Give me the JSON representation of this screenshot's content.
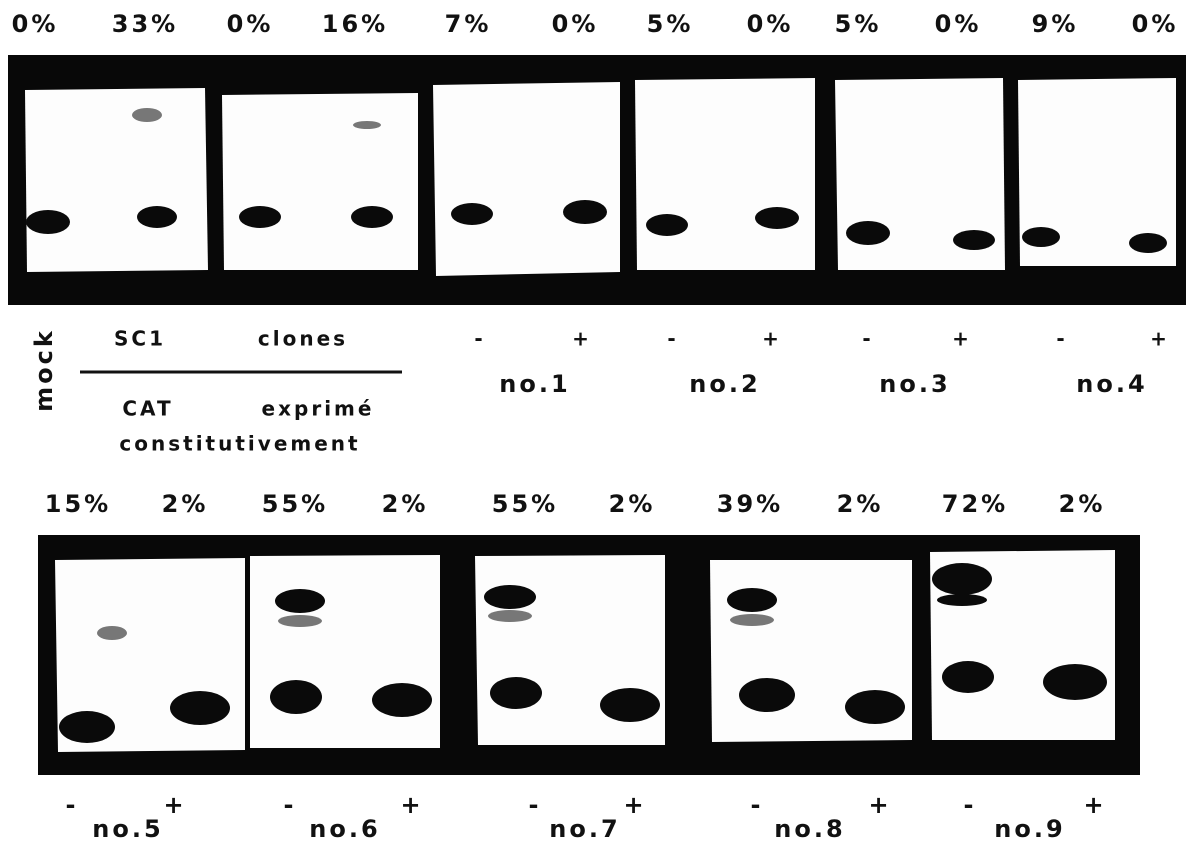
{
  "top": {
    "percents": [
      "0%",
      "33%",
      "0%",
      "16%",
      "7%",
      "0%",
      "5%",
      "0%",
      "5%",
      "0%",
      "9%",
      "0%"
    ],
    "mock": "mock",
    "sc1": "SC1",
    "clones": "clones",
    "cat": "CAT",
    "exprime": "exprimé",
    "constitutivement": "constitutivement",
    "clones_list": [
      {
        "minus": "-",
        "plus": "+",
        "name": "no.1"
      },
      {
        "minus": "-",
        "plus": "+",
        "name": "no.2"
      },
      {
        "minus": "-",
        "plus": "+",
        "name": "no.3"
      },
      {
        "minus": "-",
        "plus": "+",
        "name": "no.4"
      }
    ]
  },
  "bottom": {
    "percents": [
      "15%",
      "2%",
      "55%",
      "2%",
      "55%",
      "2%",
      "39%",
      "2%",
      "72%",
      "2%"
    ],
    "clones_list": [
      {
        "minus": "-",
        "plus": "+",
        "name": "no.5"
      },
      {
        "minus": "-",
        "plus": "+",
        "name": "no.6"
      },
      {
        "minus": "-",
        "plus": "+",
        "name": "no.7"
      },
      {
        "minus": "-",
        "plus": "+",
        "name": "no.8"
      },
      {
        "minus": "-",
        "plus": "+",
        "name": "no.9"
      }
    ]
  }
}
